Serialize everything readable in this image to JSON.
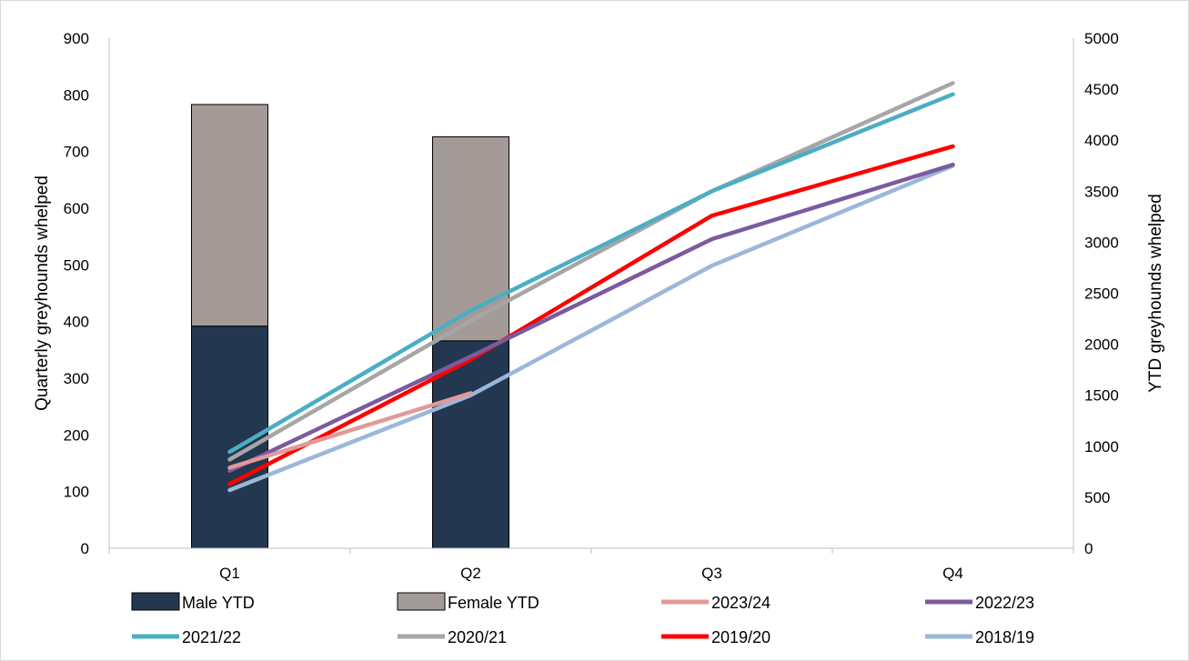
{
  "chart_data": {
    "type": "bar",
    "title": "",
    "categories": [
      "Q1",
      "Q2",
      "Q3",
      "Q4"
    ],
    "ylabel_left": "Quarterly greyhounds whelped",
    "ylabel_right": "YTD greyhounds whelped",
    "ylim_left": [
      0,
      900
    ],
    "ylim_right": [
      0,
      5000
    ],
    "yticks_left": [
      0,
      100,
      200,
      300,
      400,
      500,
      600,
      700,
      800,
      900
    ],
    "yticks_right": [
      0,
      500,
      1000,
      1500,
      2000,
      2500,
      3000,
      3500,
      4000,
      4500,
      5000
    ],
    "grid": false,
    "legend_position": "bottom",
    "bars": [
      {
        "name": "Male YTD",
        "color": "#243750",
        "values": [
          392,
          366,
          null,
          null
        ]
      },
      {
        "name": "Female YTD",
        "color": "#a49b98",
        "values": [
          391,
          360,
          null,
          null
        ]
      }
    ],
    "series": [
      {
        "name": "2023/24",
        "color": "#e19a9a",
        "axis": "right",
        "values": [
          790,
          1520,
          null,
          null
        ]
      },
      {
        "name": "2022/23",
        "color": "#7b5a9e",
        "axis": "right",
        "values": [
          760,
          1880,
          3030,
          3760
        ]
      },
      {
        "name": "2021/22",
        "color": "#4aaec4",
        "axis": "right",
        "values": [
          945,
          2330,
          3500,
          4450
        ]
      },
      {
        "name": "2020/21",
        "color": "#a6a6a6",
        "axis": "right",
        "values": [
          870,
          2230,
          3500,
          4560
        ]
      },
      {
        "name": "2019/20",
        "color": "#ff0000",
        "axis": "right",
        "values": [
          630,
          1850,
          3260,
          3940
        ]
      },
      {
        "name": "2018/19",
        "color": "#9bb7da",
        "axis": "right",
        "values": [
          570,
          1500,
          2770,
          3750
        ]
      }
    ]
  }
}
